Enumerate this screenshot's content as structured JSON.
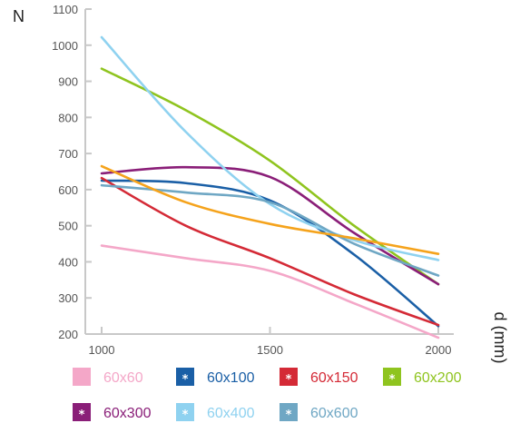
{
  "chart_data": {
    "type": "line",
    "ylabel": "N",
    "xlabel": "d (mm)",
    "xlim": [
      1000,
      2000
    ],
    "ylim": [
      200,
      1100
    ],
    "xticks": [
      1000,
      1500,
      2000
    ],
    "yticks": [
      200,
      300,
      400,
      500,
      600,
      700,
      800,
      900,
      1000,
      1100
    ],
    "x": [
      1000,
      1250,
      1500,
      1750,
      2000
    ],
    "legend_position": "bottom",
    "grid": false,
    "series": [
      {
        "name": "60x60",
        "color": "#f4a7c8",
        "marker": "",
        "values": [
          445,
          410,
          375,
          285,
          190
        ]
      },
      {
        "name": "60x100",
        "color": "#1a5fa6",
        "marker": "*",
        "values": [
          625,
          618,
          570,
          420,
          222
        ]
      },
      {
        "name": "60x150",
        "color": "#d42a36",
        "marker": "*",
        "values": [
          632,
          500,
          410,
          310,
          225
        ]
      },
      {
        "name": "60x200",
        "color": "#8fc41f",
        "marker": "*",
        "values": [
          935,
          820,
          680,
          500,
          338
        ]
      },
      {
        "name": "60x300",
        "color": "#8a1e78",
        "marker": "*",
        "values": [
          645,
          662,
          635,
          480,
          338
        ]
      },
      {
        "name": "60x400",
        "color": "#8fd2f0",
        "marker": "*",
        "values": [
          1022,
          760,
          560,
          460,
          405
        ]
      },
      {
        "name": "60x600",
        "color": "#6fa7c4",
        "marker": "*",
        "values": [
          612,
          592,
          565,
          450,
          362
        ]
      },
      {
        "name": "",
        "color": "#f5a31c",
        "marker": "",
        "values": [
          665,
          565,
          505,
          465,
          422
        ]
      }
    ]
  }
}
